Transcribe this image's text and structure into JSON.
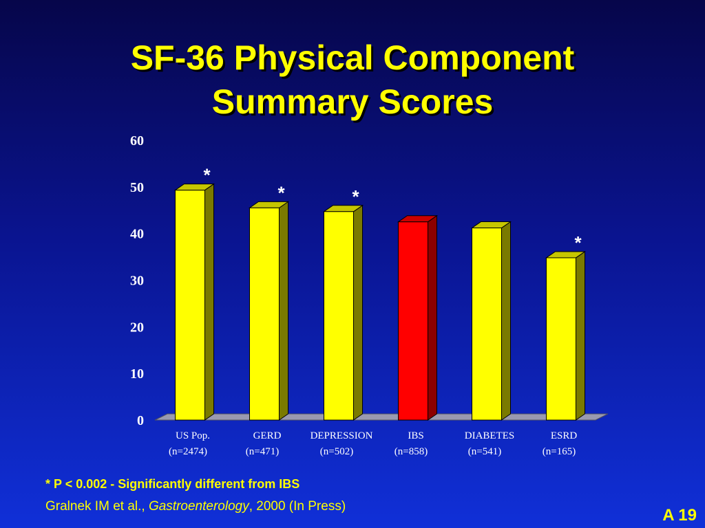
{
  "slide": {
    "title_line1": "SF-36 Physical Component",
    "title_line2": "Summary Scores",
    "footnote": "* P < 0.002 - Significantly different from IBS",
    "citation_authors": "Gralnek IM et al., ",
    "citation_journal": "Gastroenterology",
    "citation_rest": ", 2000 (In Press)",
    "slide_number": "A  19"
  },
  "chart_data": {
    "type": "bar",
    "categories": [
      "US Pop.",
      "GERD",
      "DEPRESSION",
      "IBS",
      "DIABETES",
      "ESRD"
    ],
    "sample_sizes": [
      "(n=2474)",
      "(n=471)",
      "(n=502)",
      "(n=858)",
      "(n=541)",
      "(n=165)"
    ],
    "values": [
      49.3,
      45.5,
      44.7,
      42.5,
      41.2,
      34.8
    ],
    "significant": [
      true,
      true,
      true,
      false,
      false,
      true
    ],
    "significance_marker": "*",
    "highlighted_category": "IBS",
    "bar_colors": {
      "default": "#ffff00",
      "highlight": "#ff0000"
    },
    "ylim": [
      0,
      60
    ],
    "yticks": [
      0,
      10,
      20,
      30,
      40,
      50,
      60
    ],
    "grid": false,
    "style": "3d"
  }
}
